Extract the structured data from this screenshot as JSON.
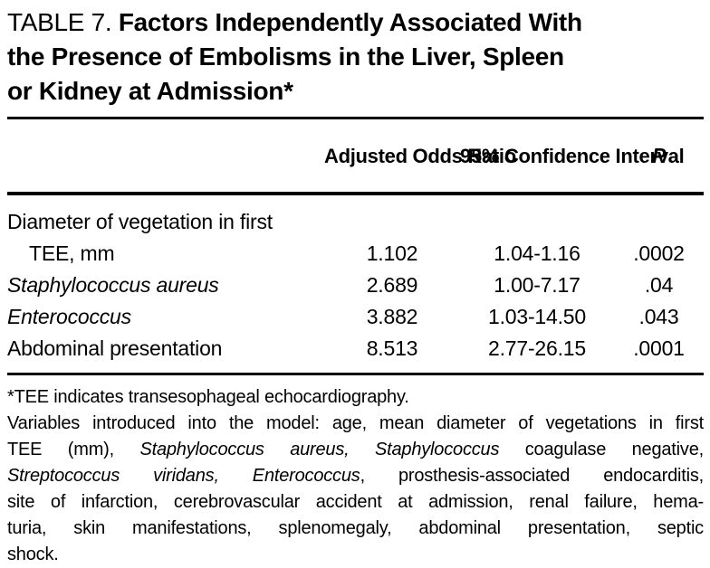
{
  "page": {
    "background_color": "#ffffff",
    "text_color": "#000000",
    "rule_color": "#000000"
  },
  "title": {
    "label": "TABLE 7.",
    "bold_line1": "Factors Independently Associated With",
    "bold_line2": "the Presence of Embolisms in the Liver, Spleen",
    "bold_line3": "or Kidney at Admission*"
  },
  "table": {
    "column_headers": {
      "factor": "",
      "adjusted_odds_ratio": "Adjusted\nOdds Ratio",
      "confidence_interval": "95% Confidence\nInterval",
      "p": "P"
    },
    "rows": [
      {
        "factor_line1": "Diameter of vegetation in first",
        "factor_line2": "TEE, mm",
        "adjusted_odds_ratio": "1.102",
        "confidence_interval": "1.04-1.16",
        "p": ".0002"
      },
      {
        "factor": "Staphylococcus aureus",
        "adjusted_odds_ratio": "2.689",
        "confidence_interval": "1.00-7.17",
        "p": ".04"
      },
      {
        "factor": "Enterococcus",
        "adjusted_odds_ratio": "3.882",
        "confidence_interval": "1.03-14.50",
        "p": ".043"
      },
      {
        "factor": "Abdominal presentation",
        "adjusted_odds_ratio": "8.513",
        "confidence_interval": "2.77-26.15",
        "p": ".0001"
      }
    ]
  },
  "footnotes": {
    "line1": "*TEE indicates transesophageal echocardiography.",
    "line2": "Variables introduced into the model: age, mean diameter of vegetations in first",
    "line3_roman_pre": "TEE (mm), ",
    "line3_italic": "Staphylococcus aureus, Staphylococcus",
    "line3_roman_post": " coagulase negative,",
    "line4_italic": "Streptococcus viridans, Enterococcus",
    "line4_roman_post": ", prosthesis-associated endocarditis,",
    "line5": "site of infarction, cerebrovascular accident at admission, renal failure, hema-",
    "line6": "turia, skin manifestations, splenomegaly, abdominal presentation, septic",
    "line7": "shock."
  }
}
